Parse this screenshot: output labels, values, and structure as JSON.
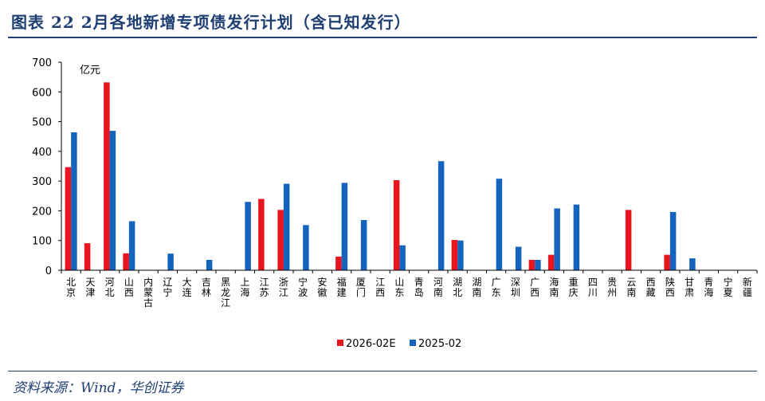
{
  "header": {
    "title": "图表 22   2月各地新增专项债发行计划（含已知发行）"
  },
  "footer": {
    "source": "资料来源：Wind，华创证券"
  },
  "colors": {
    "series1": "#e8141e",
    "series2": "#1464be",
    "rule": "#1f3f73"
  },
  "chart_data": {
    "type": "bar",
    "title": "2月各地新增专项债发行计划（含已知发行）",
    "unit_label": "亿元",
    "ylim": [
      0,
      700
    ],
    "yticks": [
      0,
      100,
      200,
      300,
      400,
      500,
      600,
      700
    ],
    "categories": [
      "北京",
      "天津",
      "河北",
      "山西",
      "内蒙古",
      "辽宁",
      "大连",
      "吉林",
      "黑龙江",
      "上海",
      "江苏",
      "浙江",
      "宁波",
      "安徽",
      "福建",
      "厦门",
      "江西",
      "山东",
      "青岛",
      "河南",
      "湖北",
      "湖南",
      "广东",
      "深圳",
      "广西",
      "海南",
      "重庆",
      "四川",
      "贵州",
      "云南",
      "西藏",
      "陕西",
      "甘肃",
      "青海",
      "宁夏",
      "新疆"
    ],
    "series": [
      {
        "name": "2026-02E",
        "values": [
          347,
          91,
          632,
          57,
          0,
          0,
          0,
          0,
          0,
          0,
          240,
          203,
          0,
          0,
          46,
          0,
          0,
          303,
          0,
          0,
          102,
          0,
          0,
          0,
          35,
          52,
          0,
          0,
          0,
          203,
          0,
          52,
          0,
          0,
          0,
          0
        ]
      },
      {
        "name": "2025-02",
        "values": [
          464,
          0,
          469,
          165,
          0,
          56,
          0,
          35,
          0,
          230,
          0,
          291,
          152,
          0,
          294,
          169,
          0,
          84,
          0,
          367,
          100,
          0,
          308,
          79,
          35,
          208,
          221,
          0,
          0,
          0,
          0,
          196,
          40,
          0,
          0,
          0
        ]
      }
    ],
    "legend": [
      "2026-02E",
      "2025-02"
    ],
    "legend_position": "bottom-center"
  }
}
